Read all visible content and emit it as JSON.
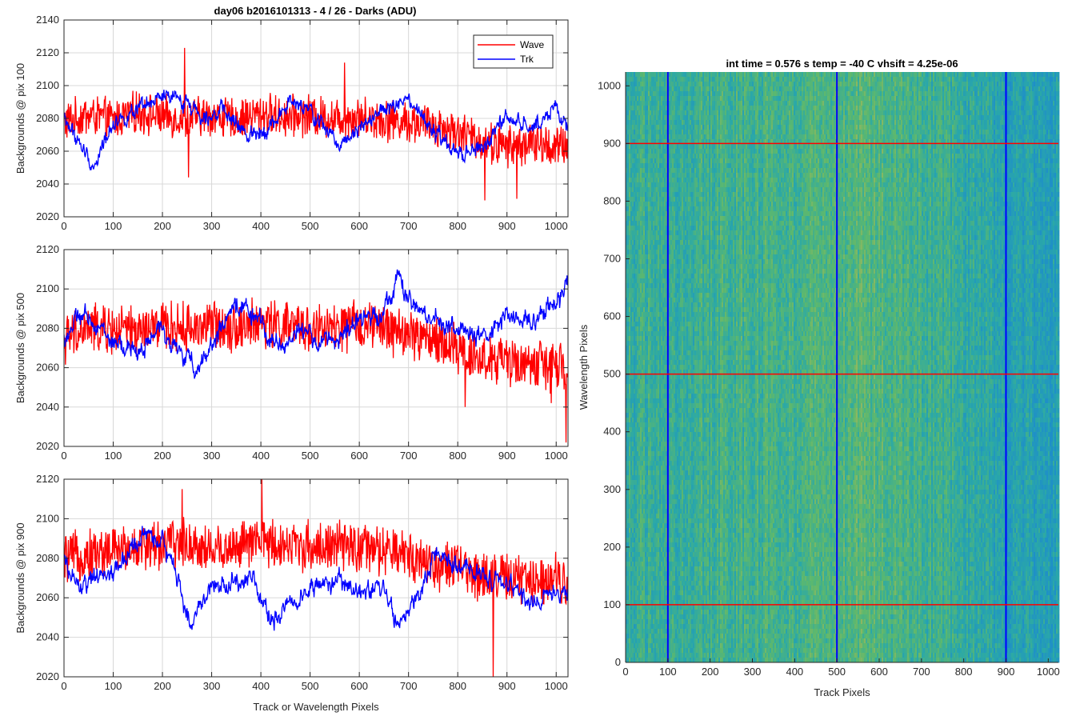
{
  "figure": {
    "title": "day06 b2016101313 - 4 / 26 - Darks (ADU)",
    "colors": {
      "wave": "#ff0000",
      "trk": "#0000ff",
      "grid": "#d8d8d8",
      "axis": "#262626"
    }
  },
  "chart_data": [
    {
      "type": "line",
      "title": "day06 b2016101313 - 4 / 26 - Darks (ADU)",
      "xlabel": "",
      "ylabel": "Backgrounds @ pix 100",
      "xlim": [
        0,
        1024
      ],
      "ylim": [
        2020,
        2140
      ],
      "xticks": [
        0,
        100,
        200,
        300,
        400,
        500,
        600,
        700,
        800,
        900,
        1000
      ],
      "yticks": [
        2020,
        2040,
        2060,
        2080,
        2100,
        2120,
        2140
      ],
      "grid": true,
      "legend": {
        "placement": "top-right",
        "entries": [
          "Wave",
          "Trk"
        ]
      },
      "series": [
        {
          "name": "Wave",
          "color": "#ff0000",
          "x": [
            0,
            50,
            100,
            150,
            200,
            250,
            300,
            350,
            400,
            450,
            500,
            550,
            600,
            650,
            700,
            750,
            800,
            850,
            900,
            950,
            1000,
            1023
          ],
          "values": [
            2078,
            2082,
            2079,
            2084,
            2081,
            2080,
            2082,
            2079,
            2083,
            2081,
            2082,
            2080,
            2081,
            2079,
            2078,
            2076,
            2072,
            2066,
            2063,
            2065,
            2062,
            2064
          ],
          "spread": 11,
          "spikes": [
            [
              245,
              2123
            ],
            [
              253,
              2044
            ],
            [
              570,
              2114
            ],
            [
              855,
              2030
            ],
            [
              920,
              2031
            ]
          ]
        },
        {
          "name": "Trk",
          "color": "#0000ff",
          "x": [
            0,
            25,
            60,
            100,
            150,
            200,
            250,
            280,
            320,
            370,
            420,
            460,
            500,
            560,
            600,
            650,
            700,
            750,
            800,
            850,
            900,
            950,
            1000,
            1023
          ],
          "values": [
            2080,
            2068,
            2050,
            2078,
            2084,
            2093,
            2090,
            2082,
            2085,
            2070,
            2075,
            2090,
            2084,
            2064,
            2076,
            2085,
            2090,
            2072,
            2057,
            2062,
            2080,
            2074,
            2088,
            2070
          ],
          "spread": 4
        }
      ]
    },
    {
      "type": "line",
      "title": "",
      "xlabel": "",
      "ylabel": "Backgrounds @ pix 500",
      "xlim": [
        0,
        1024
      ],
      "ylim": [
        2020,
        2120
      ],
      "xticks": [
        0,
        100,
        200,
        300,
        400,
        500,
        600,
        700,
        800,
        900,
        1000
      ],
      "yticks": [
        2020,
        2040,
        2060,
        2080,
        2100,
        2120
      ],
      "grid": true,
      "series": [
        {
          "name": "Wave",
          "color": "#ff0000",
          "x": [
            0,
            50,
            100,
            150,
            200,
            250,
            300,
            350,
            400,
            450,
            500,
            550,
            600,
            650,
            700,
            750,
            800,
            850,
            900,
            950,
            1000,
            1023
          ],
          "values": [
            2074,
            2080,
            2079,
            2078,
            2081,
            2080,
            2082,
            2081,
            2083,
            2081,
            2080,
            2079,
            2082,
            2080,
            2077,
            2074,
            2070,
            2064,
            2063,
            2062,
            2060,
            2058
          ],
          "spread": 11,
          "spikes": [
            [
              1020,
              2022
            ],
            [
              815,
              2040
            ],
            [
              990,
              2042
            ]
          ]
        },
        {
          "name": "Trk",
          "color": "#0000ff",
          "x": [
            0,
            30,
            70,
            100,
            150,
            200,
            240,
            270,
            320,
            360,
            400,
            440,
            480,
            520,
            560,
            600,
            650,
            680,
            700,
            750,
            800,
            850,
            900,
            950,
            1000,
            1023
          ],
          "values": [
            2074,
            2086,
            2082,
            2072,
            2068,
            2080,
            2066,
            2060,
            2080,
            2093,
            2082,
            2070,
            2080,
            2072,
            2076,
            2083,
            2090,
            2106,
            2093,
            2084,
            2080,
            2074,
            2086,
            2084,
            2094,
            2100
          ],
          "spread": 4
        }
      ]
    },
    {
      "type": "line",
      "title": "",
      "xlabel": "Track or Wavelength Pixels",
      "ylabel": "Backgrounds @ pix 900",
      "xlim": [
        0,
        1024
      ],
      "ylim": [
        2020,
        2120
      ],
      "xticks": [
        0,
        100,
        200,
        300,
        400,
        500,
        600,
        700,
        800,
        900,
        1000
      ],
      "yticks": [
        2020,
        2040,
        2060,
        2080,
        2100,
        2120
      ],
      "grid": true,
      "series": [
        {
          "name": "Wave",
          "color": "#ff0000",
          "x": [
            0,
            50,
            100,
            150,
            200,
            250,
            300,
            350,
            400,
            450,
            500,
            550,
            600,
            650,
            700,
            750,
            800,
            850,
            900,
            950,
            1000,
            1023
          ],
          "values": [
            2080,
            2082,
            2084,
            2086,
            2087,
            2088,
            2084,
            2086,
            2088,
            2087,
            2086,
            2086,
            2085,
            2083,
            2082,
            2077,
            2075,
            2071,
            2070,
            2068,
            2072,
            2068
          ],
          "spread": 11,
          "spikes": [
            [
              402,
              2120
            ],
            [
              872,
              2020
            ],
            [
              240,
              2115
            ]
          ]
        },
        {
          "name": "Trk",
          "color": "#0000ff",
          "x": [
            0,
            30,
            70,
            110,
            160,
            200,
            230,
            260,
            300,
            340,
            380,
            420,
            470,
            510,
            560,
            600,
            650,
            680,
            720,
            760,
            800,
            850,
            900,
            950,
            1000,
            1023
          ],
          "values": [
            2078,
            2065,
            2070,
            2075,
            2092,
            2088,
            2070,
            2045,
            2068,
            2066,
            2072,
            2048,
            2060,
            2065,
            2068,
            2062,
            2066,
            2045,
            2060,
            2084,
            2074,
            2072,
            2066,
            2058,
            2063,
            2063
          ],
          "spread": 4
        }
      ]
    },
    {
      "type": "heatmap",
      "title": "int time = 0.576 s   temp = -40 C   vhsift = 4.25e-06",
      "xlabel": "Track Pixels",
      "ylabel": "Wavelength Pixels",
      "xlim": [
        0,
        1024
      ],
      "ylim": [
        0,
        1024
      ],
      "xticks": [
        0,
        100,
        200,
        300,
        400,
        500,
        600,
        700,
        800,
        900,
        1000
      ],
      "yticks": [
        0,
        100,
        200,
        300,
        400,
        500,
        600,
        700,
        800,
        900,
        1000
      ],
      "grid": false,
      "colormap": [
        "#1e8fc8",
        "#2aa8a8",
        "#5cb86e",
        "#a5b85a"
      ],
      "column_profile": {
        "x": [
          0,
          100,
          200,
          300,
          400,
          500,
          550,
          600,
          700,
          800,
          850,
          900,
          1000,
          1024
        ],
        "level": [
          0.42,
          0.45,
          0.48,
          0.5,
          0.52,
          0.55,
          0.62,
          0.58,
          0.46,
          0.38,
          0.28,
          0.22,
          0.2,
          0.2
        ]
      },
      "vertical_markers": [
        100,
        500,
        900
      ],
      "horizontal_markers": [
        100,
        500,
        900
      ],
      "vertical_marker_color": "#0000ff",
      "horizontal_marker_color": "#ff0000"
    }
  ]
}
